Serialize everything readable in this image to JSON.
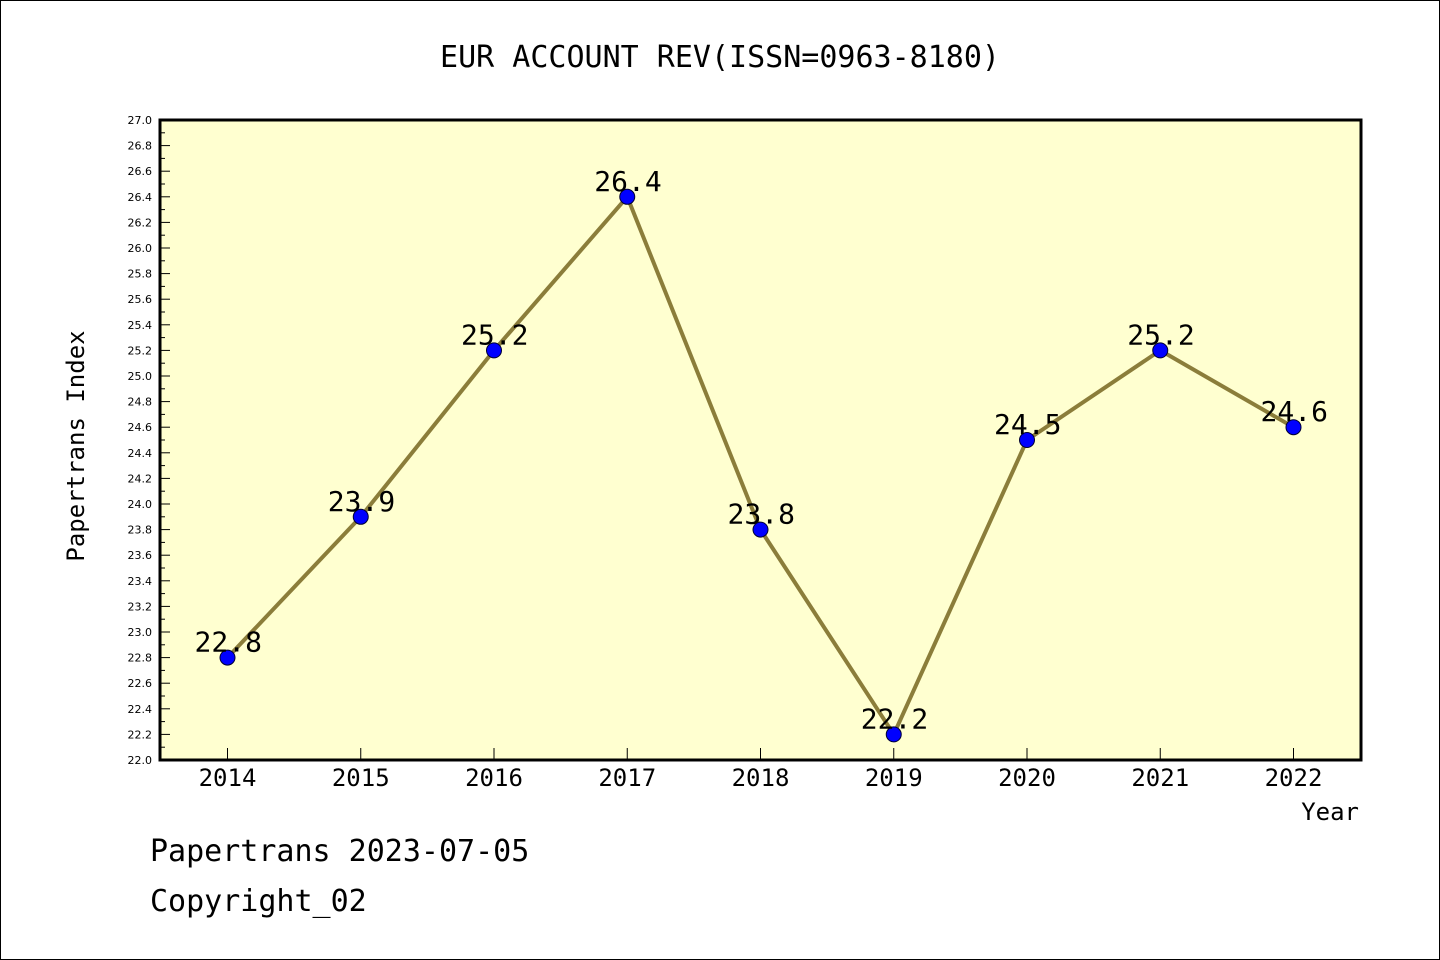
{
  "chart_data": {
    "type": "line",
    "title": "EUR ACCOUNT REV(ISSN=0963-8180)",
    "xlabel": "Year",
    "ylabel": "Papertrans Index",
    "categories": [
      "2014",
      "2015",
      "2016",
      "2017",
      "2018",
      "2019",
      "2020",
      "2021",
      "2022"
    ],
    "series": [
      {
        "values": [
          22.8,
          23.9,
          25.2,
          26.4,
          23.8,
          22.2,
          24.5,
          25.2,
          24.6
        ],
        "data_labels": [
          "22.8",
          "23.9",
          "25.2",
          "26.4",
          "23.8",
          "22.2",
          "24.5",
          "25.2",
          "24.6"
        ]
      }
    ],
    "ylim": [
      22.0,
      27.0
    ],
    "y_tick_step": 0.2,
    "y_tick_labels": [
      "22.0",
      "22.2",
      "22.4",
      "22.6",
      "22.8",
      "23.0",
      "23.2",
      "23.4",
      "23.6",
      "23.8",
      "24.0",
      "24.2",
      "24.4",
      "24.6",
      "24.8",
      "25.0",
      "25.2",
      "25.4",
      "25.6",
      "25.8",
      "26.0",
      "26.2",
      "26.4",
      "26.6",
      "26.8",
      "27.0"
    ],
    "grid": false,
    "legend": "none",
    "colors": {
      "plot_background": "#FFFFD0",
      "line": "#8B7D3A",
      "marker": "#0000FF"
    }
  },
  "footer": {
    "line1": "Papertrans 2023-07-05",
    "line2": "Copyright_02"
  }
}
